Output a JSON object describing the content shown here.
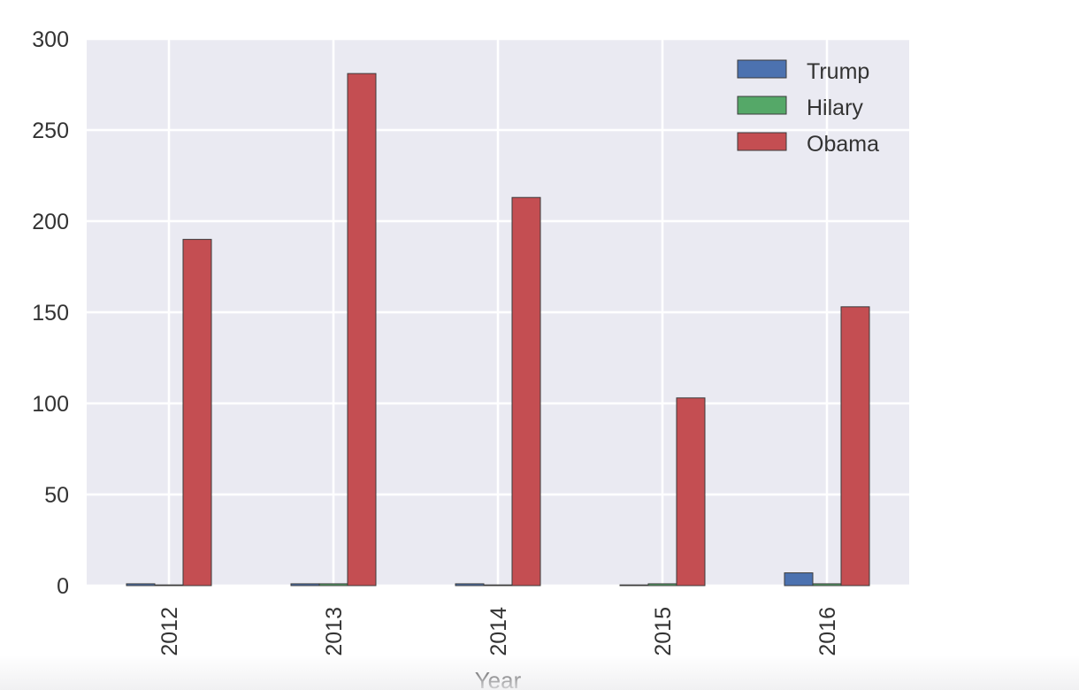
{
  "chart_data": {
    "type": "bar",
    "title": "",
    "xlabel": "Year",
    "ylabel": "",
    "categories": [
      "2012",
      "2013",
      "2014",
      "2015",
      "2016"
    ],
    "series": [
      {
        "name": "Trump",
        "color": "#4c72b0",
        "values": [
          1,
          1,
          1,
          0,
          7
        ]
      },
      {
        "name": "Hilary",
        "color": "#55a868",
        "values": [
          0,
          1,
          0,
          1,
          1
        ]
      },
      {
        "name": "Obama",
        "color": "#c44e52",
        "values": [
          190,
          281,
          213,
          103,
          153
        ]
      }
    ],
    "ylim": [
      0,
      300
    ],
    "yticks": [
      0,
      50,
      100,
      150,
      200,
      250,
      300
    ],
    "grid": true,
    "legend_position": "top-right",
    "background_color": "#eaeaf2"
  }
}
